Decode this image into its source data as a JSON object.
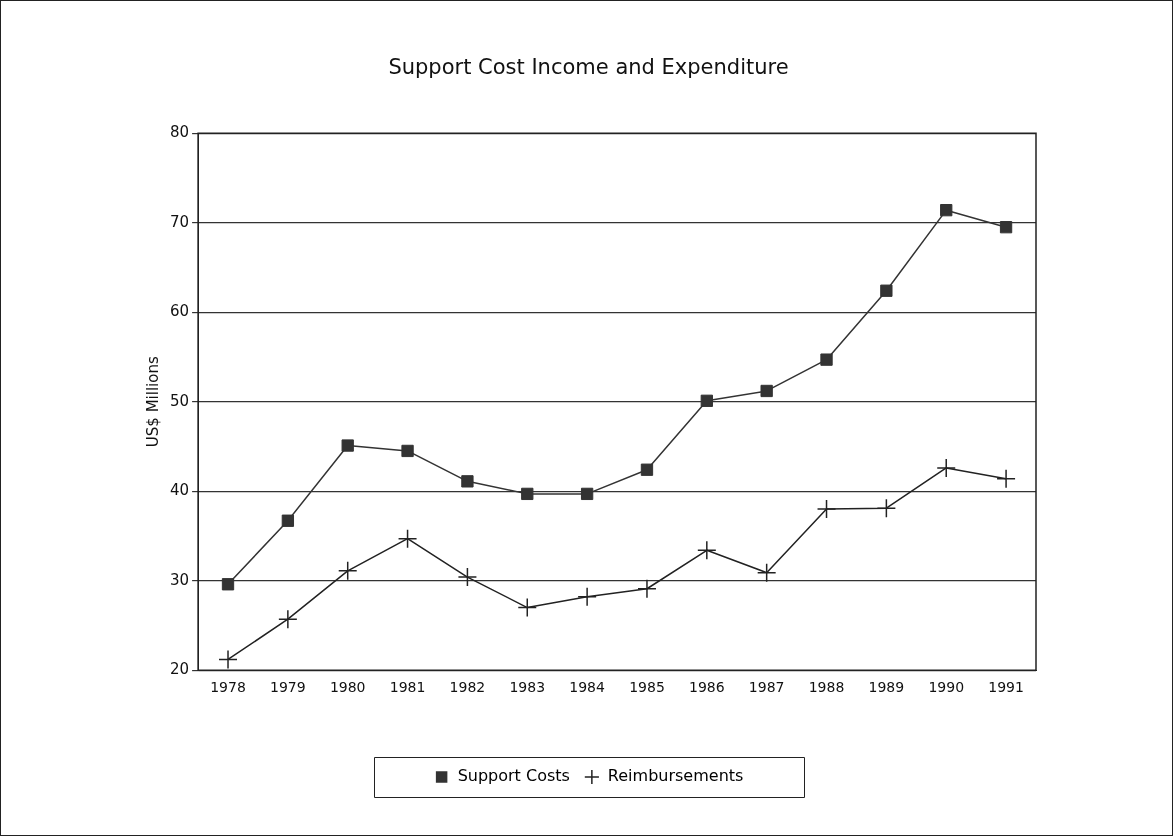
{
  "chart_data": {
    "type": "line",
    "title": "Support Cost Income and Expenditure",
    "ylabel": "US$ Millions",
    "categories": [
      "1978",
      "1979",
      "1980",
      "1981",
      "1982",
      "1983",
      "1984",
      "1985",
      "1986",
      "1987",
      "1988",
      "1989",
      "1990",
      "1991"
    ],
    "series": [
      {
        "name": "Support Costs",
        "color": "#333333",
        "marker": "square",
        "values": [
          29.6,
          36.7,
          45.1,
          44.5,
          41.1,
          39.7,
          39.7,
          42.4,
          50.1,
          51.2,
          54.7,
          62.4,
          71.4,
          69.5
        ]
      },
      {
        "name": "Reimbursements",
        "color": "#222222",
        "marker": "cross",
        "values": [
          21.2,
          25.7,
          31.1,
          34.7,
          30.4,
          27.0,
          28.2,
          29.1,
          33.4,
          30.9,
          38.0,
          38.1,
          42.6,
          41.4
        ]
      }
    ],
    "ylim": [
      20,
      80
    ],
    "yticks": [
      20,
      30,
      40,
      50,
      60,
      70,
      80
    ],
    "grid": "y",
    "legend": "bottom",
    "line_style": "solid"
  }
}
